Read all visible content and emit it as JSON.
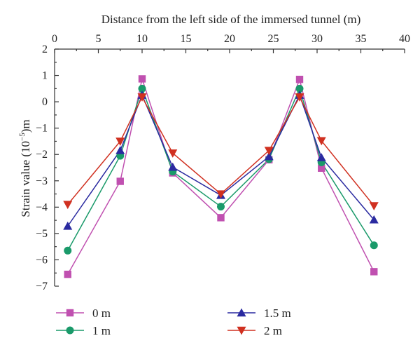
{
  "chart_data": {
    "type": "line",
    "xlabel": "Distance from the left side of the immersed tunnel (m)",
    "ylabel_main": "Strain value (10",
    "ylabel_sup": "−5",
    "ylabel_end": ")m",
    "xlim": [
      0,
      40
    ],
    "ylim": [
      -7,
      2
    ],
    "x_axis_position": "top",
    "x_ticks": [
      0,
      5,
      10,
      15,
      20,
      25,
      30,
      35,
      40
    ],
    "x_tick_labels": [
      "0",
      "5",
      "10",
      "15",
      "20",
      "25",
      "30",
      "35",
      "40"
    ],
    "y_ticks": [
      2,
      1,
      0,
      -1,
      -2,
      -3,
      -4,
      -5,
      -6,
      -7
    ],
    "y_tick_labels": [
      "2",
      "1",
      "0",
      "−1",
      "−2",
      "−3",
      "−4",
      "−5",
      "−6",
      "−7"
    ],
    "grid": false,
    "legend_position": "bottom",
    "x": [
      1.5,
      7.5,
      10,
      13.5,
      19,
      24.5,
      28,
      30.5,
      36.5
    ],
    "series": [
      {
        "name": "0 m",
        "color": "#c050b0",
        "marker": "square",
        "values": [
          -6.55,
          -3.02,
          0.87,
          -2.7,
          -4.4,
          -2.2,
          0.85,
          -2.52,
          -6.45
        ]
      },
      {
        "name": "1 m",
        "color": "#1a9a6a",
        "marker": "circle",
        "values": [
          -5.65,
          -2.05,
          0.5,
          -2.65,
          -3.98,
          -2.18,
          0.5,
          -2.3,
          -5.45
        ]
      },
      {
        "name": "1.5 m",
        "color": "#2a2aa0",
        "marker": "triangle-up",
        "values": [
          -4.72,
          -1.85,
          0.25,
          -2.48,
          -3.55,
          -2.08,
          0.25,
          -2.12,
          -4.48
        ]
      },
      {
        "name": "2 m",
        "color": "#d03020",
        "marker": "triangle-down",
        "values": [
          -3.9,
          -1.5,
          0.18,
          -1.95,
          -3.5,
          -1.85,
          0.18,
          -1.48,
          -3.95
        ]
      }
    ]
  }
}
